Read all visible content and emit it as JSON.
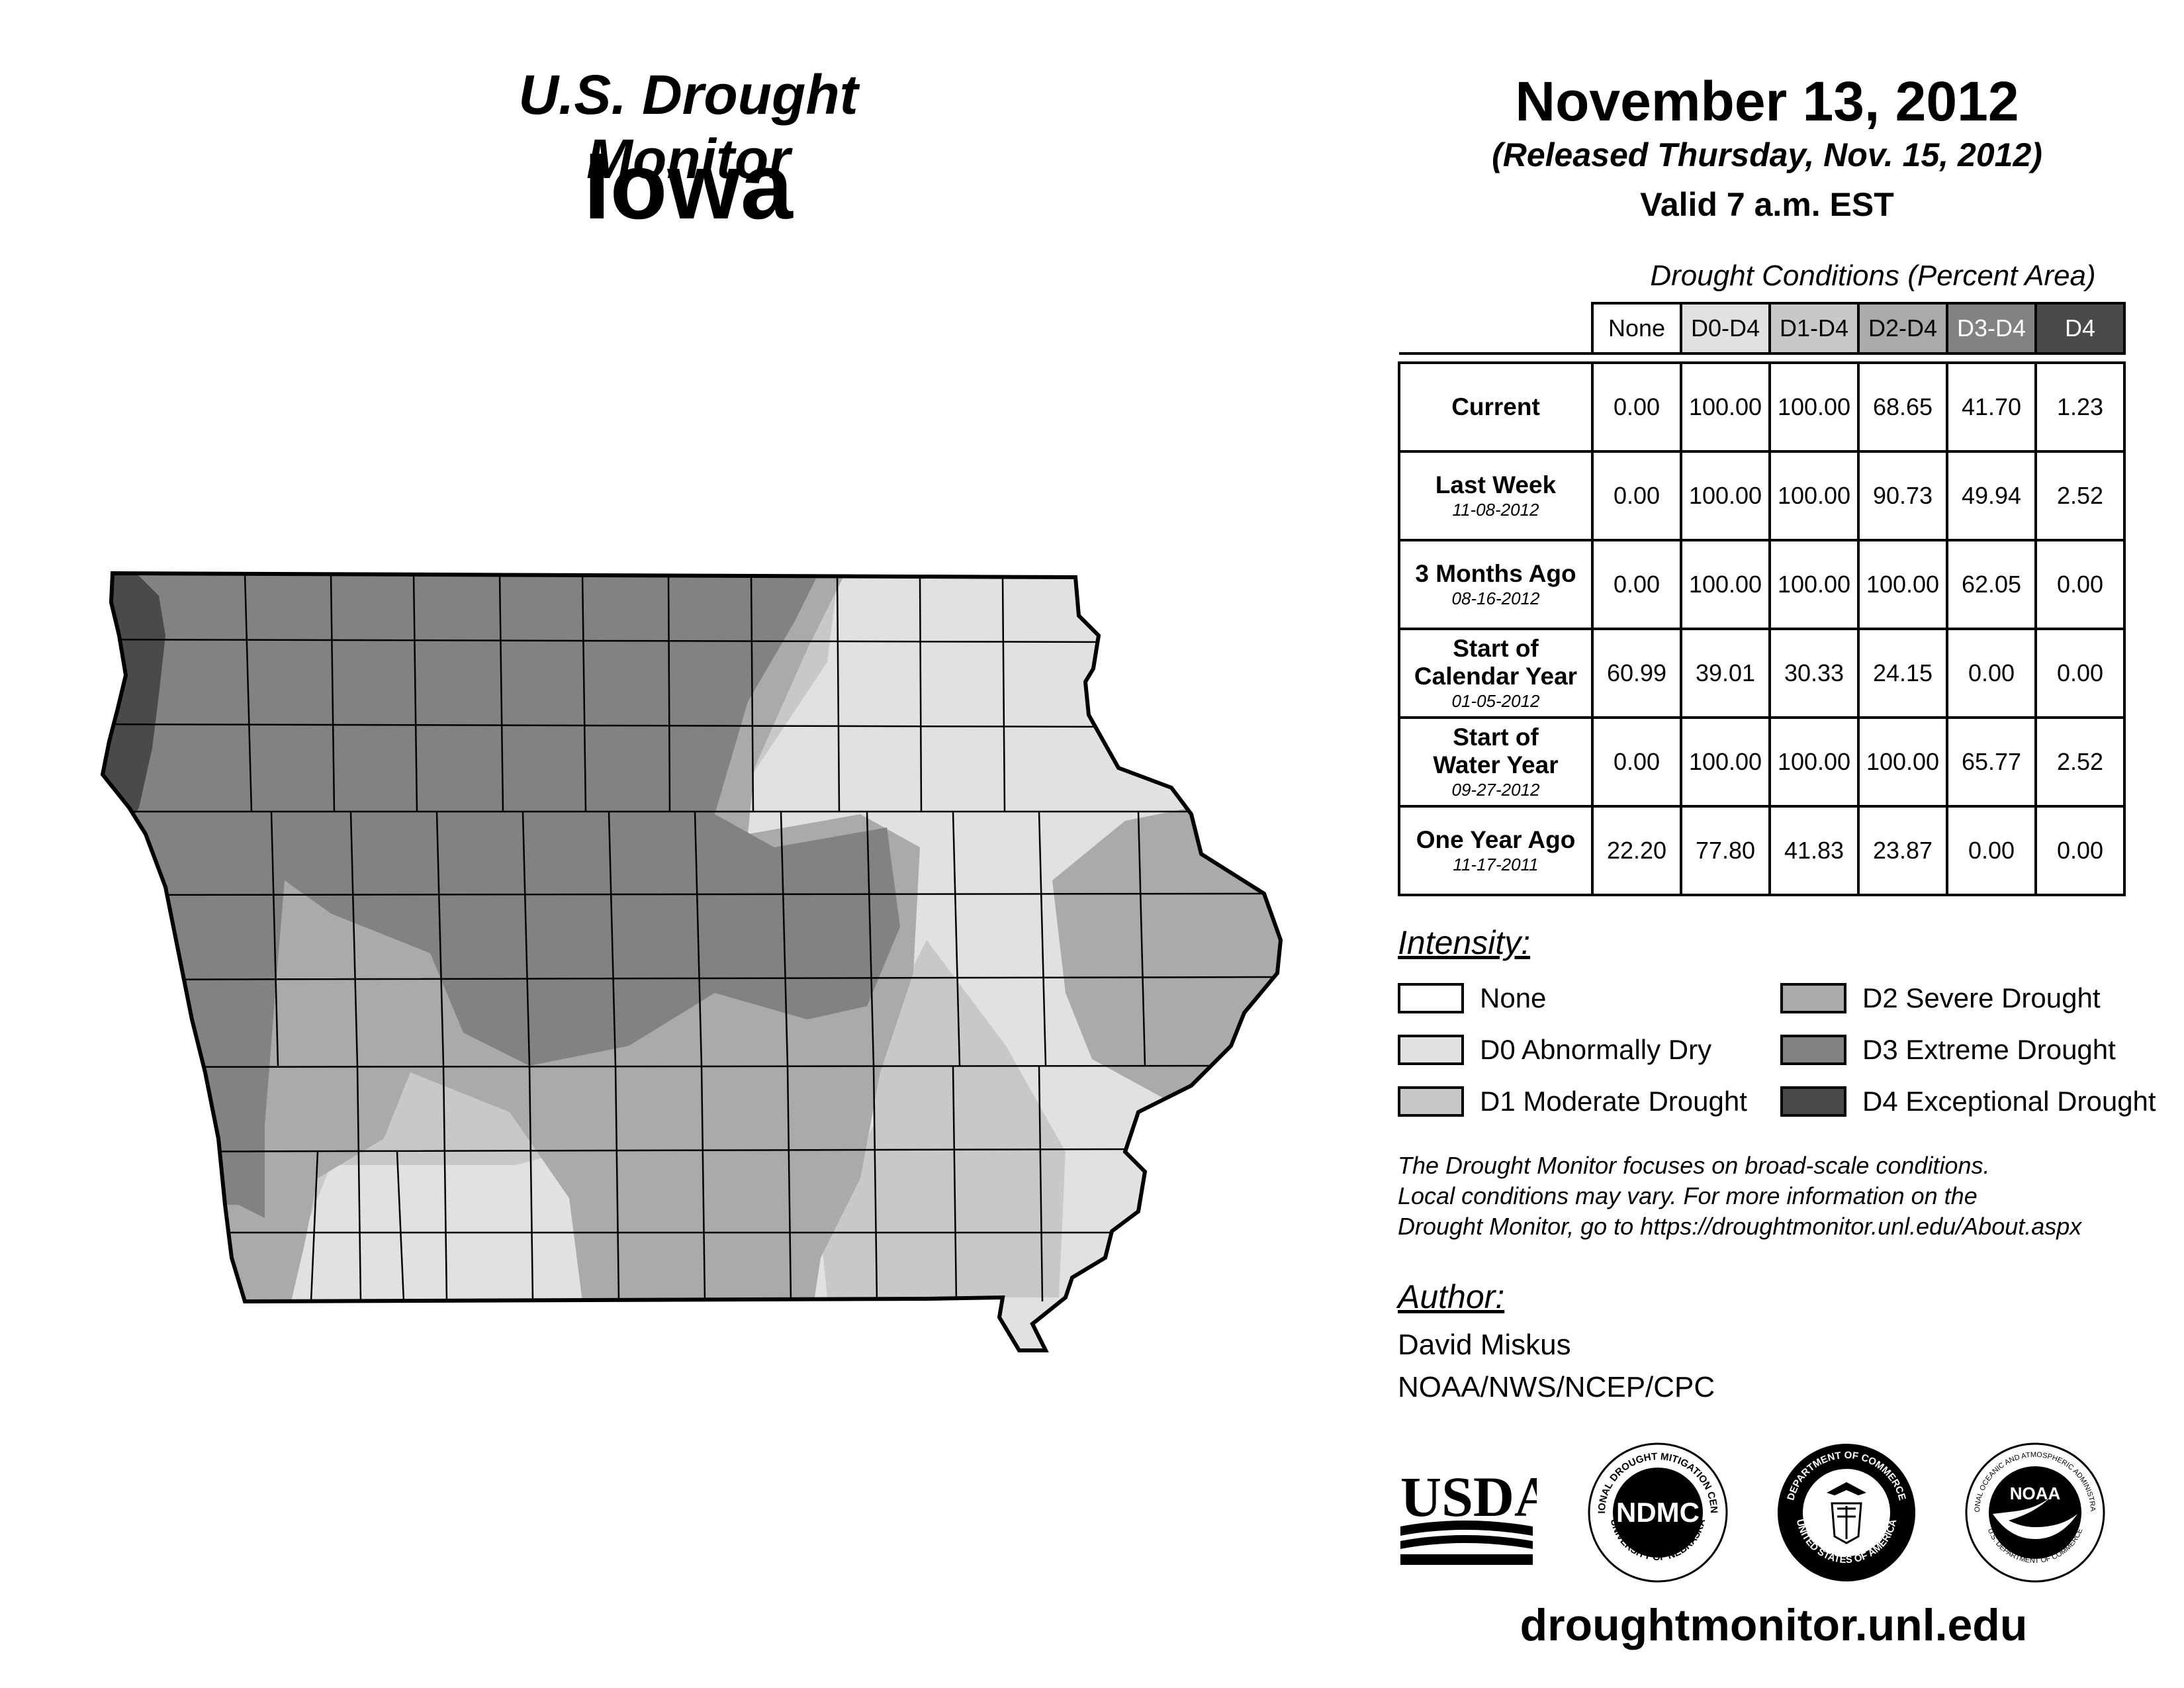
{
  "header": {
    "title": "U.S. Drought Monitor",
    "state": "Iowa",
    "date": "November 13, 2012",
    "released": "(Released Thursday, Nov. 15, 2012)",
    "valid": "Valid 7 a.m. EST"
  },
  "table": {
    "caption": "Drought Conditions (Percent Area)",
    "columns": [
      "None",
      "D0-D4",
      "D1-D4",
      "D2-D4",
      "D3-D4",
      "D4"
    ],
    "rows": [
      {
        "label": "Current",
        "label2": "",
        "date": "",
        "values": [
          "0.00",
          "100.00",
          "100.00",
          "68.65",
          "41.70",
          "1.23"
        ]
      },
      {
        "label": "Last Week",
        "label2": "",
        "date": "11-08-2012",
        "values": [
          "0.00",
          "100.00",
          "100.00",
          "90.73",
          "49.94",
          "2.52"
        ]
      },
      {
        "label": "3 Months Ago",
        "label2": "",
        "date": "08-16-2012",
        "values": [
          "0.00",
          "100.00",
          "100.00",
          "100.00",
          "62.05",
          "0.00"
        ]
      },
      {
        "label": "Start of",
        "label2": "Calendar Year",
        "date": "01-05-2012",
        "values": [
          "60.99",
          "39.01",
          "30.33",
          "24.15",
          "0.00",
          "0.00"
        ]
      },
      {
        "label": "Start of",
        "label2": "Water Year",
        "date": "09-27-2012",
        "values": [
          "0.00",
          "100.00",
          "100.00",
          "100.00",
          "65.77",
          "2.52"
        ]
      },
      {
        "label": "One Year Ago",
        "label2": "",
        "date": "11-17-2011",
        "values": [
          "22.20",
          "77.80",
          "41.83",
          "23.87",
          "0.00",
          "0.00"
        ]
      }
    ]
  },
  "legend": {
    "title": "Intensity:",
    "items": [
      {
        "label": "None",
        "color": "#ffffff"
      },
      {
        "label": "D0 Abnormally Dry",
        "color": "#e1e1e1"
      },
      {
        "label": "D1 Moderate Drought",
        "color": "#c8c8c8"
      },
      {
        "label": "D2 Severe Drought",
        "color": "#aaaaaa"
      },
      {
        "label": "D3 Extreme Drought",
        "color": "#828282"
      },
      {
        "label": "D4 Exceptional Drought",
        "color": "#4a4a4a"
      }
    ]
  },
  "note": {
    "line1": "The Drought Monitor focuses on broad-scale conditions.",
    "line2": "Local conditions may vary. For more information on the",
    "line3": "Drought Monitor, go to https://droughtmonitor.unl.edu/About.aspx"
  },
  "author": {
    "title": "Author:",
    "name": "David Miskus",
    "org": "NOAA/NWS/NCEP/CPC"
  },
  "logos": {
    "usda": "USDA",
    "ndmc": "NDMC",
    "ndmc_ring_top": "NATIONAL DROUGHT MITIGATION CENTER",
    "ndmc_ring_bottom": "UNIVERSITY OF NEBRASKA",
    "doc_ring_top": "DEPARTMENT OF COMMERCE",
    "doc_ring_bottom": "UNITED STATES OF AMERICA",
    "noaa": "NOAA",
    "noaa_ring_top": "NATIONAL OCEANIC AND ATMOSPHERIC ADMINISTRATION",
    "noaa_ring_bottom": "U.S. DEPARTMENT OF COMMERCE"
  },
  "footer_url": "droughtmonitor.unl.edu"
}
